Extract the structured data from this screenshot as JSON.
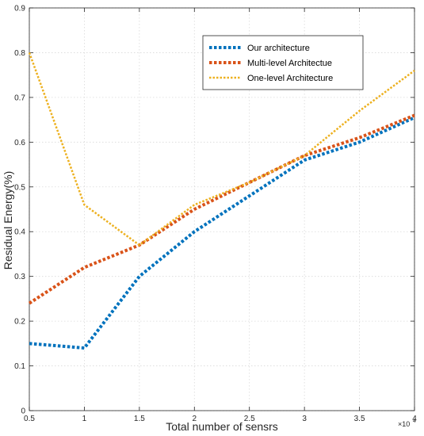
{
  "chart_data": {
    "type": "line",
    "xlabel": "Total number of sensrs",
    "ylabel": "Residual Energy(%)",
    "x_multiplier": "×10",
    "x_multiplier_exp": "4",
    "xlim": [
      0.5,
      4
    ],
    "ylim": [
      0,
      0.9
    ],
    "x_ticks": [
      "0.5",
      "1",
      "1.5",
      "2",
      "2.5",
      "3",
      "3.5",
      "4"
    ],
    "y_ticks": [
      "0",
      "0.1",
      "0.2",
      "0.3",
      "0.4",
      "0.5",
      "0.6",
      "0.7",
      "0.8",
      "0.9"
    ],
    "grid": true,
    "legend_position": "top-right",
    "x": [
      0.5,
      1,
      1.5,
      2,
      2.5,
      3,
      3.5,
      4
    ],
    "series": [
      {
        "name": "Our architecture",
        "color": "#0072BD",
        "values": [
          0.15,
          0.14,
          0.3,
          0.4,
          0.48,
          0.56,
          0.6,
          0.655
        ]
      },
      {
        "name": "Multi-level Architectue",
        "color": "#D95319",
        "values": [
          0.24,
          0.32,
          0.37,
          0.45,
          0.51,
          0.57,
          0.61,
          0.66
        ]
      },
      {
        "name": "One-level Architecture",
        "color": "#EDB120",
        "values": [
          0.8,
          0.46,
          0.37,
          0.46,
          0.51,
          0.57,
          0.67,
          0.76
        ]
      }
    ]
  }
}
